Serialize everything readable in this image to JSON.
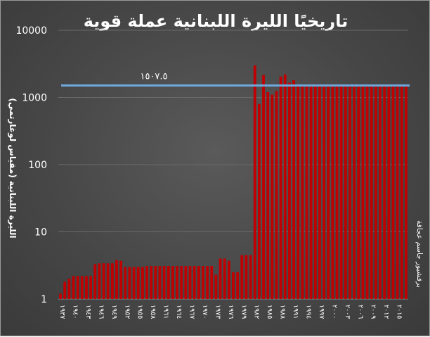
{
  "chart_data": {
    "type": "bar",
    "title": "تاريخيًا الليرة اللبنانية عملة قوية",
    "ylabel": "الليرة اللبنانية (مقياس لوغارتمي)",
    "credit": "برقشيور جاسم عجاقة",
    "y_scale": "log",
    "ylim": [
      1,
      10000
    ],
    "y_ticks": [
      "1",
      "10",
      "100",
      "1000",
      "10000"
    ],
    "y_tick_values": [
      1,
      10,
      100,
      1000,
      10000
    ],
    "reference_line": {
      "value": 1507.5,
      "label": "١٥٠٧.٥",
      "color": "#6fa8dc"
    },
    "bar_color": "#c00000",
    "grid": true,
    "x_tick_labels": [
      "١٩٣٧",
      "١٩٤٠",
      "١٩٤٣",
      "١٩٤٦",
      "١٩٤٩",
      "١٩٥٢",
      "١٩٥٥",
      "١٩٥٨",
      "١٩٦١",
      "١٩٦٤",
      "١٩٦٧",
      "١٩٧٠",
      "١٩٧٣",
      "١٩٧٦",
      "١٩٧٩",
      "١٩٨٢",
      "١٩٨٥",
      "١٩٨٨",
      "١٩٩١",
      "١٩٩٤",
      "١٩٩٧",
      "٢٠٠٠",
      "٢٠٠٣",
      "٢٠٠٦",
      "٢٠٠٩",
      "٢٠١٢",
      "٢٠١٥"
    ],
    "x_tick_years": [
      1937,
      1940,
      1943,
      1946,
      1949,
      1952,
      1955,
      1958,
      1961,
      1964,
      1967,
      1970,
      1973,
      1976,
      1979,
      1982,
      1985,
      1988,
      1991,
      1994,
      1997,
      2000,
      2003,
      2006,
      2009,
      2012,
      2015
    ],
    "years": [
      1937,
      1938,
      1939,
      1940,
      1941,
      1942,
      1943,
      1944,
      1945,
      1946,
      1947,
      1948,
      1949,
      1950,
      1951,
      1952,
      1953,
      1954,
      1955,
      1956,
      1957,
      1958,
      1959,
      1960,
      1961,
      1962,
      1963,
      1964,
      1965,
      1966,
      1967,
      1968,
      1969,
      1970,
      1971,
      1972,
      1973,
      1974,
      1975,
      1976,
      1977,
      1978,
      1979,
      1980,
      1981,
      1982,
      1983,
      1984,
      1985,
      1986,
      1987,
      1988,
      1989,
      1990,
      1991,
      1992,
      1993,
      1994,
      1995,
      1996,
      1997,
      1998,
      1999,
      2000,
      2001,
      2002,
      2003,
      2004,
      2005,
      2006,
      2007,
      2008,
      2009,
      2010,
      2011,
      2012,
      2013,
      2014,
      2015,
      2016,
      2017
    ],
    "values": [
      1.2,
      1.8,
      2.0,
      2.2,
      2.2,
      2.2,
      2.2,
      2.2,
      3.3,
      3.4,
      3.4,
      3.4,
      3.4,
      3.8,
      3.7,
      3.0,
      3.0,
      3.0,
      3.0,
      3.0,
      3.1,
      3.1,
      3.1,
      3.1,
      3.1,
      3.1,
      3.1,
      3.1,
      3.1,
      3.1,
      3.1,
      3.1,
      3.1,
      3.1,
      3.1,
      3.1,
      2.3,
      4.0,
      4.0,
      3.7,
      2.5,
      2.5,
      4.5,
      4.5,
      4.5,
      3000,
      800,
      2150,
      1200,
      1100,
      1250,
      2050,
      2200,
      1650,
      1800,
      1500,
      1500,
      1500,
      1500,
      1500,
      1500,
      1500,
      1500,
      1500,
      1500,
      1500,
      1500,
      1500,
      1500,
      1500,
      1500,
      1500,
      1500,
      1500,
      1500,
      1500,
      1500,
      1500,
      1500,
      1500,
      1500
    ]
  }
}
